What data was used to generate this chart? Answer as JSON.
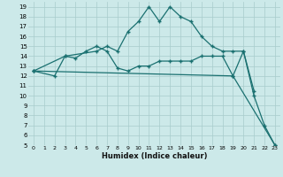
{
  "xlabel": "Humidex (Indice chaleur)",
  "xlim": [
    -0.5,
    23.5
  ],
  "ylim": [
    5,
    19.5
  ],
  "yticks": [
    5,
    6,
    7,
    8,
    9,
    10,
    11,
    12,
    13,
    14,
    15,
    16,
    17,
    18,
    19
  ],
  "xticks": [
    0,
    1,
    2,
    3,
    4,
    5,
    6,
    7,
    8,
    9,
    10,
    11,
    12,
    13,
    14,
    15,
    16,
    17,
    18,
    19,
    20,
    21,
    22,
    23
  ],
  "bg_color": "#cce9e9",
  "line_color": "#1a7070",
  "grid_color": "#a8cccc",
  "line1_x": [
    0,
    2,
    3,
    4,
    5,
    6,
    7,
    8,
    9,
    10,
    11,
    12,
    13,
    14,
    15,
    16,
    17,
    18,
    19,
    20,
    21
  ],
  "line1_y": [
    12.5,
    12,
    14,
    13.8,
    14.5,
    15,
    14.5,
    12.8,
    12.5,
    13,
    13,
    13.5,
    13.5,
    13.5,
    13.5,
    14,
    14,
    14,
    12,
    14.5,
    10.5
  ],
  "line2_x": [
    0,
    3,
    6,
    7,
    8,
    9,
    10,
    11,
    12,
    13,
    14,
    15,
    16,
    17,
    18,
    19,
    20,
    21,
    22,
    23
  ],
  "line2_y": [
    12.5,
    14,
    14.5,
    15,
    14.5,
    16.5,
    17.5,
    19,
    17.5,
    19,
    18,
    17.5,
    16,
    15,
    14.5,
    14.5,
    14.5,
    10,
    7,
    5
  ],
  "line3_x": [
    0,
    19,
    23
  ],
  "line3_y": [
    12.5,
    12,
    5
  ]
}
